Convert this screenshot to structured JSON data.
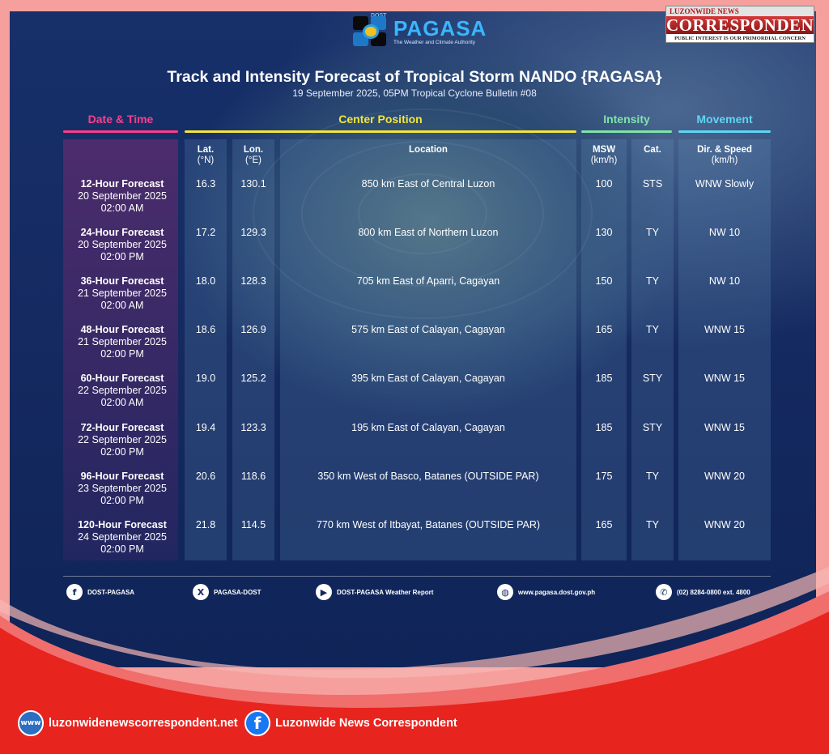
{
  "header": {
    "logo_small": "DOST",
    "logo_name": "PAGASA",
    "logo_tagline": "The Weather and Climate Authority",
    "title": "Track and Intensity Forecast of Tropical Storm NANDO {RAGASA}",
    "subtitle": "19 September 2025, 05PM Tropical Cyclone Bulletin #08"
  },
  "brand": {
    "top": "LUZONWIDE NEWS",
    "name": "CORRESPONDENT",
    "motto": "PUBLIC INTEREST IS OUR PRIMORDIAL CONCERN"
  },
  "columns": {
    "date_time": "Date & Time",
    "center_position": "Center Position",
    "intensity": "Intensity",
    "movement": "Movement",
    "lat": "Lat.",
    "lat_unit": "(°N)",
    "lon": "Lon.",
    "lon_unit": "(°E)",
    "location": "Location",
    "msw": "MSW",
    "msw_unit": "(km/h)",
    "cat": "Cat.",
    "dir_speed": "Dir. & Speed",
    "dir_speed_unit": "(km/h)"
  },
  "colors": {
    "date_time": "#ff3d8b",
    "center_position": "#f2e63a",
    "intensity": "#7ee5a8",
    "movement": "#5fd6f2"
  },
  "rows": [
    {
      "label": "12-Hour Forecast",
      "date": "20 September 2025",
      "time": "02:00 AM",
      "lat": "16.3",
      "lon": "130.1",
      "location": "850 km East of Central Luzon",
      "msw": "100",
      "cat": "STS",
      "movement": "WNW Slowly"
    },
    {
      "label": "24-Hour Forecast",
      "date": "20 September 2025",
      "time": "02:00 PM",
      "lat": "17.2",
      "lon": "129.3",
      "location": "800 km East of Northern Luzon",
      "msw": "130",
      "cat": "TY",
      "movement": "NW 10"
    },
    {
      "label": "36-Hour Forecast",
      "date": "21 September 2025",
      "time": "02:00 AM",
      "lat": "18.0",
      "lon": "128.3",
      "location": "705 km East of Aparri, Cagayan",
      "msw": "150",
      "cat": "TY",
      "movement": "NW 10"
    },
    {
      "label": "48-Hour Forecast",
      "date": "21 September 2025",
      "time": "02:00 PM",
      "lat": "18.6",
      "lon": "126.9",
      "location": "575 km East of Calayan, Cagayan",
      "msw": "165",
      "cat": "TY",
      "movement": "WNW 15"
    },
    {
      "label": "60-Hour Forecast",
      "date": "22 September 2025",
      "time": "02:00 AM",
      "lat": "19.0",
      "lon": "125.2",
      "location": "395 km East of Calayan, Cagayan",
      "msw": "185",
      "cat": "STY",
      "movement": "WNW 15"
    },
    {
      "label": "72-Hour Forecast",
      "date": "22 September 2025",
      "time": "02:00 PM",
      "lat": "19.4",
      "lon": "123.3",
      "location": "195 km East of Calayan, Cagayan",
      "msw": "185",
      "cat": "STY",
      "movement": "WNW 15"
    },
    {
      "label": "96-Hour Forecast",
      "date": "23 September 2025",
      "time": "02:00 PM",
      "lat": "20.6",
      "lon": "118.6",
      "location": "350 km West of Basco, Batanes (OUTSIDE PAR)",
      "msw": "175",
      "cat": "TY",
      "movement": "WNW 20"
    },
    {
      "label": "120-Hour Forecast",
      "date": "24 September 2025",
      "time": "02:00 PM",
      "lat": "21.8",
      "lon": "114.5",
      "location": "770 km West of Itbayat, Batanes (OUTSIDE PAR)",
      "msw": "165",
      "cat": "TY",
      "movement": "WNW 20"
    }
  ],
  "footer": {
    "facebook": "DOST-PAGASA",
    "x": "PAGASA-DOST",
    "youtube": "DOST-PAGASA Weather Report",
    "website": "www.pagasa.dost.gov.ph",
    "phone": "(02) 8284-0800 ext. 4800"
  },
  "bottom": {
    "website": "luzonwidenewscorrespondent.net",
    "facebook": "Luzonwide News Correspondent"
  },
  "icons": [
    "facebook-icon",
    "x-icon",
    "youtube-icon",
    "globe-icon",
    "phone-icon"
  ]
}
